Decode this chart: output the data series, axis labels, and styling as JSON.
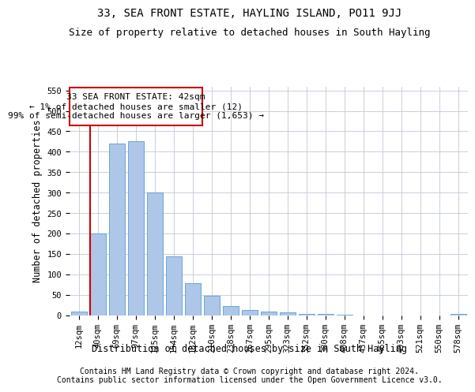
{
  "title": "33, SEA FRONT ESTATE, HAYLING ISLAND, PO11 9JJ",
  "subtitle": "Size of property relative to detached houses in South Hayling",
  "xlabel": "Distribution of detached houses by size in South Hayling",
  "ylabel": "Number of detached properties",
  "footer_line1": "Contains HM Land Registry data © Crown copyright and database right 2024.",
  "footer_line2": "Contains public sector information licensed under the Open Government Licence v3.0.",
  "annotation_line1": "33 SEA FRONT ESTATE: 42sqm",
  "annotation_line2": "← 1% of detached houses are smaller (12)",
  "annotation_line3": "99% of semi-detached houses are larger (1,653) →",
  "bar_labels": [
    "12sqm",
    "40sqm",
    "69sqm",
    "97sqm",
    "125sqm",
    "154sqm",
    "182sqm",
    "210sqm",
    "238sqm",
    "267sqm",
    "295sqm",
    "323sqm",
    "352sqm",
    "380sqm",
    "408sqm",
    "437sqm",
    "465sqm",
    "493sqm",
    "521sqm",
    "550sqm",
    "578sqm"
  ],
  "bar_values": [
    8,
    200,
    420,
    425,
    300,
    143,
    78,
    48,
    23,
    12,
    8,
    7,
    3,
    2,
    1,
    0,
    0,
    0,
    0,
    0,
    3
  ],
  "bar_color": "#aec6e8",
  "bar_edge_color": "#5b9bd5",
  "highlight_color": "#cc0000",
  "highlight_index": 1,
  "ylim": [
    0,
    560
  ],
  "yticks": [
    0,
    50,
    100,
    150,
    200,
    250,
    300,
    350,
    400,
    450,
    500,
    550
  ],
  "background_color": "#ffffff",
  "grid_color": "#c0c8d8",
  "title_fontsize": 10,
  "subtitle_fontsize": 9,
  "axis_label_fontsize": 8.5,
  "tick_fontsize": 7.5,
  "annotation_fontsize": 8,
  "footer_fontsize": 7
}
